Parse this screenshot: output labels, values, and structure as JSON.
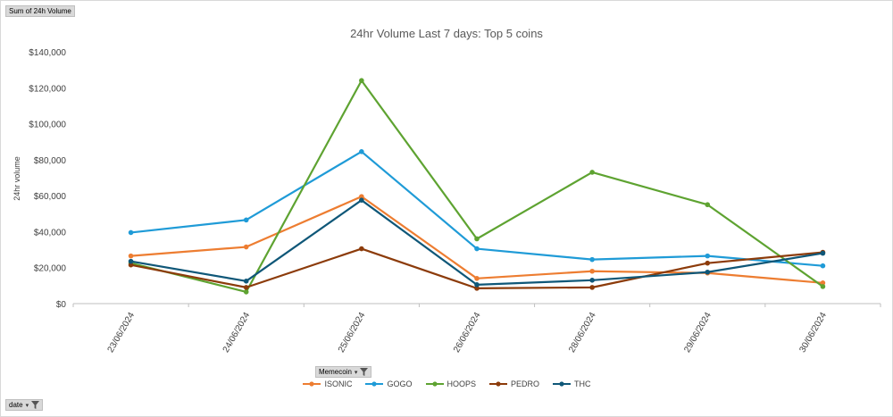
{
  "pivot": {
    "value_field": "Sum of 24h Volume",
    "legend_field": "Memecoin",
    "axis_field": "date"
  },
  "chart_data": {
    "type": "line",
    "title": "24hr Volume Last 7 days: Top 5 coins",
    "ylabel": "24hr volume",
    "xlabel": "",
    "ylim": [
      0,
      140000
    ],
    "y_ticks": [
      0,
      20000,
      40000,
      60000,
      80000,
      100000,
      120000,
      140000
    ],
    "y_tick_labels": [
      "$0",
      "$20,000",
      "$40,000",
      "$60,000",
      "$80,000",
      "$100,000",
      "$120,000",
      "$140,000"
    ],
    "categories": [
      "23/06/2024",
      "24/06/2024",
      "25/06/2024",
      "26/06/2024",
      "28/06/2024",
      "29/06/2024",
      "30/06/2024"
    ],
    "legend_position": "bottom",
    "series": [
      {
        "name": "ISONIC",
        "color": "#ed7d31",
        "values": [
          26500,
          31500,
          59500,
          14000,
          18000,
          17000,
          11500
        ]
      },
      {
        "name": "GOGO",
        "color": "#1f9bd7",
        "values": [
          39500,
          46500,
          84500,
          30500,
          24500,
          26500,
          21000
        ]
      },
      {
        "name": "HOOPS",
        "color": "#5ea331",
        "values": [
          22500,
          6500,
          124000,
          36000,
          73000,
          55000,
          9500
        ]
      },
      {
        "name": "PEDRO",
        "color": "#8c3b0a",
        "values": [
          21500,
          9000,
          30500,
          8500,
          9000,
          22500,
          28500
        ]
      },
      {
        "name": "THC",
        "color": "#0f5778",
        "values": [
          23500,
          12500,
          57500,
          10500,
          13000,
          17500,
          28000
        ]
      }
    ]
  }
}
